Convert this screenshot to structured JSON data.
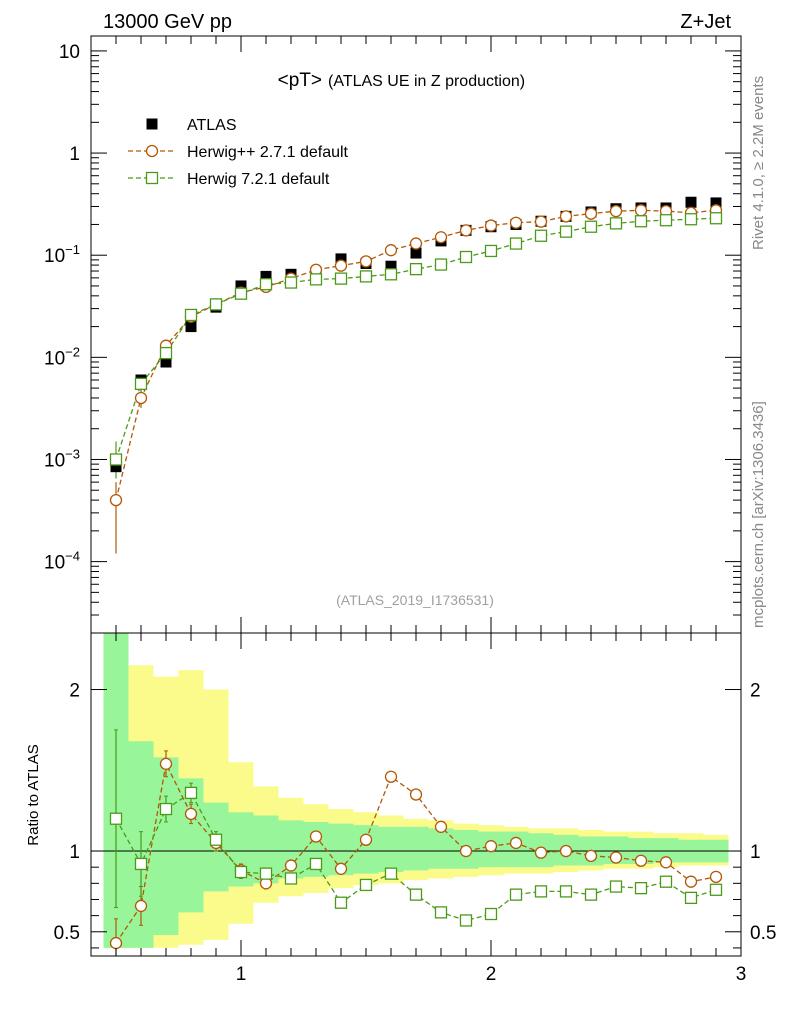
{
  "header": {
    "energy_label": "13000 GeV pp",
    "process_label": "Z+Jet"
  },
  "side_labels": {
    "rivet": "Rivet 4.1.0, ≥ 2.2M events",
    "mcplots": "mcplots.cern.ch [arXiv:1306.3436]"
  },
  "colors": {
    "data": "#000000",
    "herwig_pp": "#b35806",
    "herwig7": "#4c9a1a",
    "band_inner": "#99f599",
    "band_outer": "#fbfb8c"
  },
  "chart_data": [
    {
      "type": "scatter",
      "title": "<pT>",
      "subtitle": "(ATLAS UE in Z production)",
      "analysis_id": "(ATLAS_2019_I1736531)",
      "xlabel": "",
      "ylabel": "",
      "xlim": [
        0.4,
        3.0
      ],
      "yscale": "log",
      "ylim": [
        2e-05,
        14
      ],
      "y_ticks": [
        {
          "base": "10",
          "exp": "−4"
        },
        {
          "base": "10",
          "exp": "−3"
        },
        {
          "base": "10",
          "exp": "−2"
        },
        {
          "base": "10",
          "exp": "−1"
        },
        {
          "base": "1",
          "exp": ""
        },
        {
          "base": "10",
          "exp": ""
        }
      ],
      "legend_position": "top-left",
      "series": [
        {
          "name": "ATLAS",
          "marker": "filled-square",
          "x": [
            0.5,
            0.6,
            0.7,
            0.8,
            0.9,
            1.0,
            1.1,
            1.2,
            1.3,
            1.4,
            1.5,
            1.6,
            1.7,
            1.8,
            1.9,
            2.0,
            2.1,
            2.2,
            2.3,
            2.4,
            2.5,
            2.6,
            2.7,
            2.8,
            2.9
          ],
          "values": [
            0.00085,
            0.006,
            0.009,
            0.02,
            0.031,
            0.05,
            0.062,
            0.065,
            0.067,
            0.092,
            0.083,
            0.078,
            0.105,
            0.138,
            0.175,
            0.19,
            0.2,
            0.215,
            0.24,
            0.265,
            0.285,
            0.29,
            0.29,
            0.33,
            0.325
          ]
        },
        {
          "name": "Herwig++ 2.7.1 default",
          "marker": "open-circle",
          "x": [
            0.5,
            0.6,
            0.7,
            0.8,
            0.9,
            1.0,
            1.1,
            1.2,
            1.3,
            1.4,
            1.5,
            1.6,
            1.7,
            1.8,
            1.9,
            2.0,
            2.1,
            2.2,
            2.3,
            2.4,
            2.5,
            2.6,
            2.7,
            2.8,
            2.9
          ],
          "values": [
            0.0004,
            0.004,
            0.013,
            0.025,
            0.033,
            0.043,
            0.049,
            0.059,
            0.072,
            0.079,
            0.087,
            0.112,
            0.13,
            0.15,
            0.175,
            0.195,
            0.208,
            0.213,
            0.24,
            0.255,
            0.27,
            0.275,
            0.27,
            0.26,
            0.275
          ]
        },
        {
          "name": "Herwig 7.2.1 default",
          "marker": "open-square",
          "x": [
            0.5,
            0.6,
            0.7,
            0.8,
            0.9,
            1.0,
            1.1,
            1.2,
            1.3,
            1.4,
            1.5,
            1.6,
            1.7,
            1.8,
            1.9,
            2.0,
            2.1,
            2.2,
            2.3,
            2.4,
            2.5,
            2.6,
            2.7,
            2.8,
            2.9
          ],
          "values": [
            0.001,
            0.0055,
            0.011,
            0.026,
            0.033,
            0.042,
            0.052,
            0.054,
            0.058,
            0.059,
            0.062,
            0.065,
            0.073,
            0.081,
            0.096,
            0.11,
            0.13,
            0.155,
            0.17,
            0.19,
            0.205,
            0.215,
            0.22,
            0.225,
            0.23
          ]
        }
      ]
    },
    {
      "type": "scatter",
      "title": "",
      "xlabel": "",
      "ylabel": "Ratio to ATLAS",
      "xlim": [
        0.4,
        3.0
      ],
      "ylim": [
        0.35,
        2.35
      ],
      "x_ticks": [
        "1",
        "2",
        "3"
      ],
      "y_ticks": [
        "0.5",
        "1",
        "2"
      ],
      "reference_line": 1,
      "bands": {
        "x_edges": [
          0.45,
          0.55,
          0.65,
          0.75,
          0.85,
          0.95,
          1.05,
          1.15,
          1.25,
          1.35,
          1.45,
          1.55,
          1.65,
          1.75,
          1.85,
          1.95,
          2.05,
          2.15,
          2.25,
          2.35,
          2.45,
          2.55,
          2.65,
          2.75,
          2.85,
          2.95
        ],
        "inner": [
          [
            0.4,
            2.35
          ],
          [
            0.4,
            1.68
          ],
          [
            0.48,
            1.58
          ],
          [
            0.62,
            1.45
          ],
          [
            0.75,
            1.3
          ],
          [
            0.78,
            1.24
          ],
          [
            0.8,
            1.22
          ],
          [
            0.83,
            1.19
          ],
          [
            0.84,
            1.18
          ],
          [
            0.85,
            1.17
          ],
          [
            0.86,
            1.16
          ],
          [
            0.87,
            1.15
          ],
          [
            0.88,
            1.15
          ],
          [
            0.89,
            1.14
          ],
          [
            0.89,
            1.13
          ],
          [
            0.9,
            1.12
          ],
          [
            0.9,
            1.12
          ],
          [
            0.9,
            1.11
          ],
          [
            0.91,
            1.1
          ],
          [
            0.91,
            1.09
          ],
          [
            0.92,
            1.09
          ],
          [
            0.92,
            1.08
          ],
          [
            0.93,
            1.08
          ],
          [
            0.93,
            1.07
          ],
          [
            0.93,
            1.07
          ]
        ],
        "outer": [
          [
            0.4,
            2.35
          ],
          [
            0.4,
            2.15
          ],
          [
            0.4,
            2.08
          ],
          [
            0.42,
            2.12
          ],
          [
            0.45,
            2.0
          ],
          [
            0.55,
            1.55
          ],
          [
            0.68,
            1.4
          ],
          [
            0.72,
            1.33
          ],
          [
            0.74,
            1.29
          ],
          [
            0.77,
            1.26
          ],
          [
            0.79,
            1.24
          ],
          [
            0.8,
            1.22
          ],
          [
            0.82,
            1.2
          ],
          [
            0.83,
            1.19
          ],
          [
            0.84,
            1.17
          ],
          [
            0.85,
            1.16
          ],
          [
            0.86,
            1.15
          ],
          [
            0.86,
            1.14
          ],
          [
            0.87,
            1.14
          ],
          [
            0.88,
            1.13
          ],
          [
            0.89,
            1.12
          ],
          [
            0.89,
            1.12
          ],
          [
            0.9,
            1.11
          ],
          [
            0.91,
            1.11
          ],
          [
            0.91,
            1.1
          ]
        ]
      },
      "series": [
        {
          "name": "Herwig++ 2.7.1 default",
          "marker": "open-circle",
          "x": [
            0.5,
            0.6,
            0.7,
            0.8,
            0.9,
            1.0,
            1.1,
            1.2,
            1.3,
            1.4,
            1.5,
            1.6,
            1.7,
            1.8,
            1.9,
            2.0,
            2.1,
            2.2,
            2.3,
            2.4,
            2.5,
            2.6,
            2.7,
            2.8,
            2.9
          ],
          "values": [
            0.43,
            0.66,
            1.54,
            1.23,
            1.05,
            0.88,
            0.8,
            0.91,
            1.09,
            0.89,
            1.07,
            1.46,
            1.35,
            1.15,
            1.0,
            1.03,
            1.05,
            0.99,
            1.0,
            0.97,
            0.96,
            0.94,
            0.93,
            0.81,
            0.84
          ],
          "err": [
            0.15,
            0.12,
            0.08,
            0.06,
            0.05,
            0.04,
            0.035,
            0.03,
            0.03,
            0.03,
            0.025,
            0.025,
            0.02,
            0.02,
            0.02,
            0.02,
            0.02,
            0.02,
            0.02,
            0.015,
            0.015,
            0.015,
            0.015,
            0.015,
            0.015
          ]
        },
        {
          "name": "Herwig 7.2.1 default",
          "marker": "open-square",
          "x": [
            0.5,
            0.6,
            0.7,
            0.8,
            0.9,
            1.0,
            1.1,
            1.2,
            1.3,
            1.4,
            1.5,
            1.6,
            1.7,
            1.8,
            1.9,
            2.0,
            2.1,
            2.2,
            2.3,
            2.4,
            2.5,
            2.6,
            2.7,
            2.8,
            2.9
          ],
          "values": [
            1.2,
            0.92,
            1.26,
            1.36,
            1.07,
            0.87,
            0.86,
            0.83,
            0.92,
            0.68,
            0.79,
            0.86,
            0.73,
            0.62,
            0.57,
            0.61,
            0.73,
            0.75,
            0.75,
            0.73,
            0.78,
            0.77,
            0.81,
            0.71,
            0.76
          ],
          "err": [
            0.55,
            0.2,
            0.08,
            0.06,
            0.05,
            0.04,
            0.035,
            0.03,
            0.03,
            0.03,
            0.025,
            0.025,
            0.02,
            0.02,
            0.02,
            0.02,
            0.02,
            0.02,
            0.02,
            0.015,
            0.015,
            0.015,
            0.015,
            0.015,
            0.015
          ]
        }
      ]
    }
  ]
}
